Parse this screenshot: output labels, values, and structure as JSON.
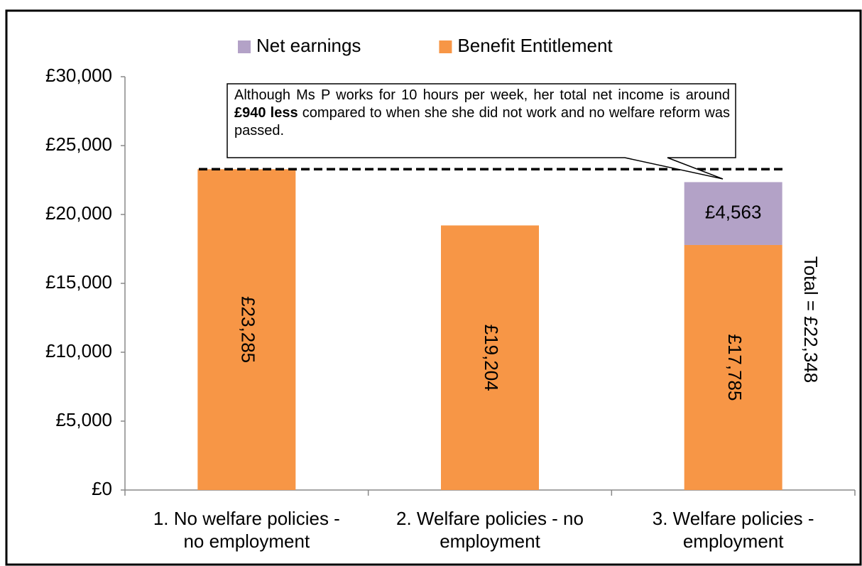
{
  "chart_data": {
    "type": "stacked_bar",
    "categories": [
      [
        "1. No welfare policies -",
        "no employment"
      ],
      [
        "2. Welfare policies - no",
        "employment"
      ],
      [
        "3. Welfare policies -",
        "employment"
      ]
    ],
    "series": [
      {
        "name": "Net earnings",
        "color": "#b3a2c7",
        "values": [
          null,
          null,
          4563
        ],
        "value_labels": [
          null,
          null,
          "£4,563"
        ]
      },
      {
        "name": "Benefit Entitlement",
        "color": "#f79646",
        "values": [
          23285,
          19204,
          17785
        ],
        "value_labels": [
          "£23,285",
          "£19,204",
          "£17,785"
        ]
      }
    ],
    "ylim": [
      0,
      30000
    ],
    "yticks": [
      {
        "value": 0,
        "label": "£0"
      },
      {
        "value": 5000,
        "label": "£5,000"
      },
      {
        "value": 10000,
        "label": "£10,000"
      },
      {
        "value": 15000,
        "label": "£15,000"
      },
      {
        "value": 20000,
        "label": "£20,000"
      },
      {
        "value": 25000,
        "label": "£25,000"
      },
      {
        "value": 30000,
        "label": "£30,000"
      }
    ],
    "annotation": [
      "Although Ms P works for 10 hours per week, her total net income is around ",
      "£940 less",
      " compared to when she she did not work and no welfare reform was passed."
    ],
    "total_label": "Total = £22,348",
    "legend": "top",
    "grid": false
  }
}
